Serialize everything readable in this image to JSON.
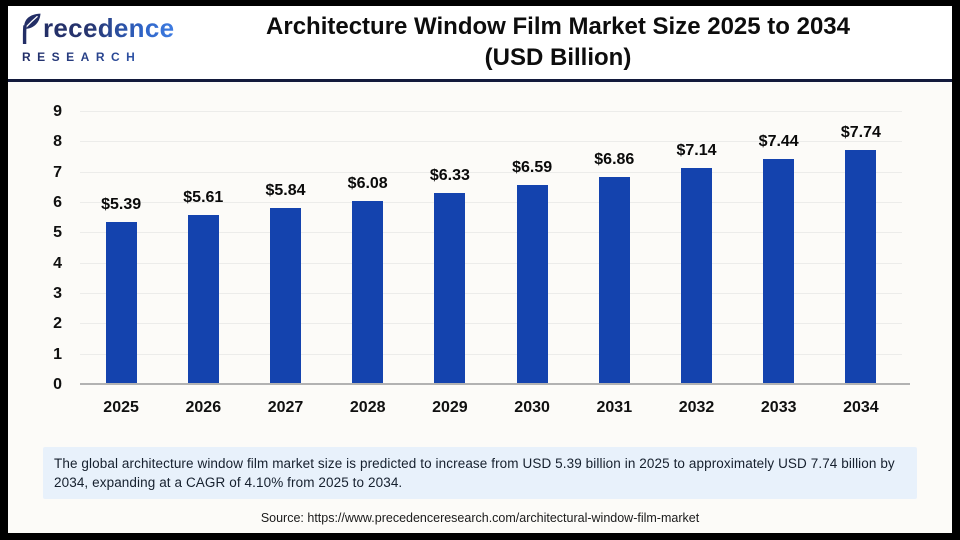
{
  "header": {
    "logo": {
      "brand": "Precedence",
      "brand_text_rendered": "recedence",
      "subtitle": "RESEARCH"
    },
    "title_line1": "Architecture Window Film Market Size 2025 to 2034",
    "title_line2": "(USD Billion)"
  },
  "chart_data": {
    "type": "bar",
    "title": "Architecture Window Film Market Size 2025 to 2034 (USD Billion)",
    "categories": [
      "2025",
      "2026",
      "2027",
      "2028",
      "2029",
      "2030",
      "2031",
      "2032",
      "2033",
      "2034"
    ],
    "values": [
      5.39,
      5.61,
      5.84,
      6.08,
      6.33,
      6.59,
      6.86,
      7.14,
      7.44,
      7.74
    ],
    "data_labels": [
      "$5.39",
      "$5.61",
      "$5.84",
      "$6.08",
      "$6.33",
      "$6.59",
      "$6.86",
      "$7.14",
      "$7.44",
      "$7.74"
    ],
    "xlabel": "",
    "ylabel": "",
    "ylim": [
      0,
      9
    ],
    "yticks": [
      0,
      1,
      2,
      3,
      4,
      5,
      6,
      7,
      8,
      9
    ],
    "grid": true,
    "legend_position": "none",
    "bar_color": "#1443ae",
    "unit": "USD Billion"
  },
  "note_text": "The global architecture window film market size is predicted to increase from USD 5.39 billion in 2025 to approximately USD 7.74 billion by 2034, expanding at a CAGR of 4.10% from 2025 to 2034.",
  "source_text": "Source: https://www.precedenceresearch.com/architectural-window-film-market"
}
